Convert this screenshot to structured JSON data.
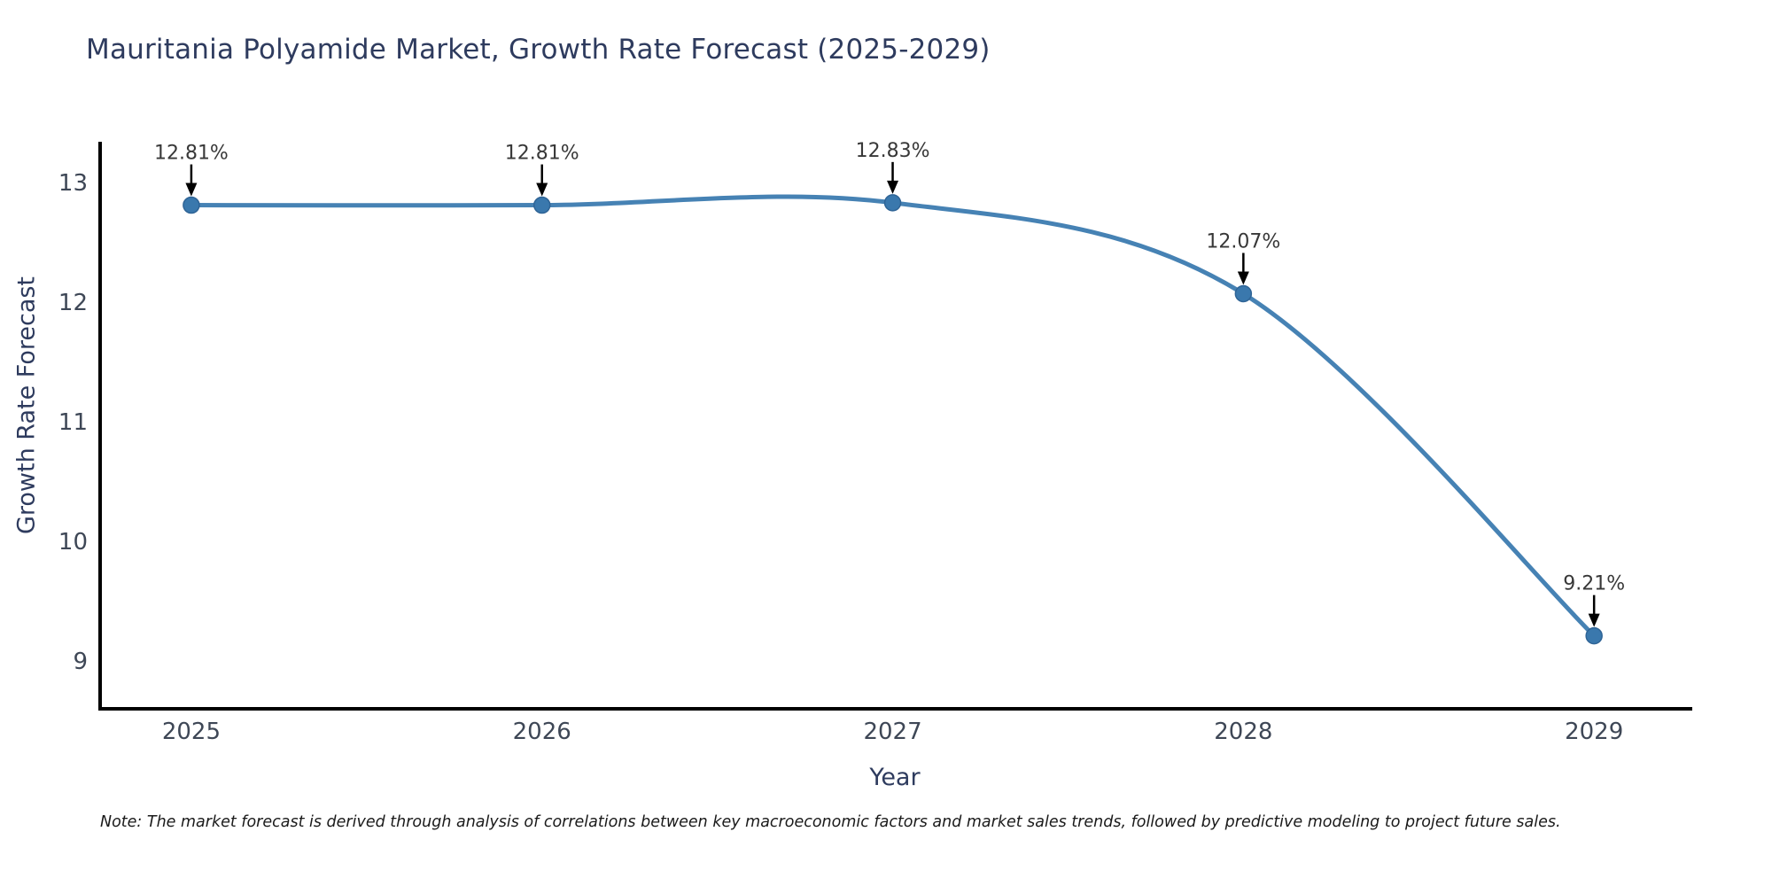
{
  "page": {
    "background": "#ffffff"
  },
  "chart_data": {
    "type": "line",
    "title": "Mauritania Polyamide Market, Growth Rate Forecast (2025-2029)",
    "xlabel": "Year",
    "ylabel": "Growth Rate Forecast",
    "x": [
      2025,
      2026,
      2027,
      2028,
      2029
    ],
    "series": [
      {
        "name": "Growth Rate Forecast",
        "values": [
          12.81,
          12.81,
          12.83,
          12.07,
          9.21
        ],
        "labels": [
          "12.81%",
          "12.81%",
          "12.83%",
          "12.07%",
          "9.21%"
        ]
      }
    ],
    "xticks": [
      2025,
      2026,
      2027,
      2028,
      2029
    ],
    "yticks": [
      9,
      10,
      11,
      12,
      13
    ],
    "xlim": [
      2024.74,
      2029.28
    ],
    "ylim": [
      8.6,
      13.34
    ],
    "grid": false,
    "legend": "none",
    "line_shape": "spline",
    "annotation_arrows": true,
    "colors": {
      "line": "#4682b4",
      "marker": "#3a78ad",
      "marker_edge": "#2f6496",
      "axis_line": "#000000",
      "tick_text": "#3e4756",
      "title_text": "#2e3b5e",
      "annotation_text": "#383838",
      "arrow": "#000000"
    }
  },
  "note": {
    "text": "Note: The market forecast is derived through analysis of correlations between key macroeconomic factors and market sales trends, followed by predictive modeling to project future sales."
  }
}
